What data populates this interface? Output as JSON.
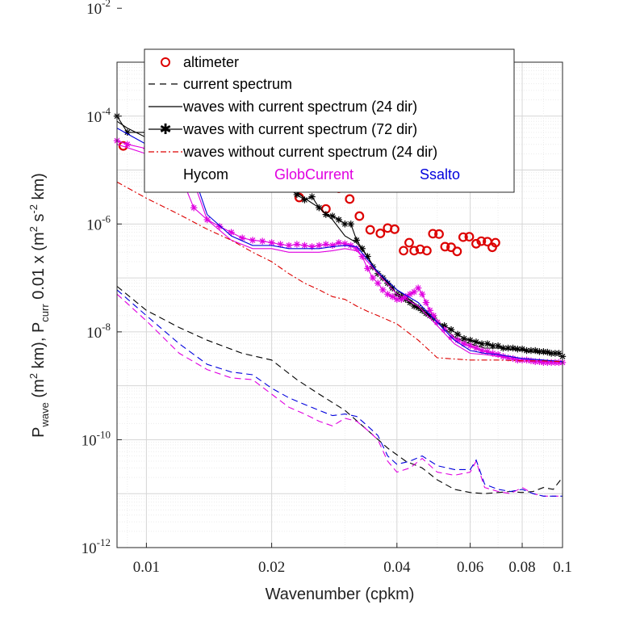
{
  "chart_data": {
    "type": "line",
    "xscale": "log",
    "yscale": "log",
    "xlim": [
      0.0085,
      0.1
    ],
    "ylim": [
      1e-12,
      0.001
    ],
    "xlabel": "Wavenumber (cpkm)",
    "ylabel": {
      "p1": "P",
      "s1": "wave",
      "p2": " (m",
      "sup1": "2",
      "p3": " km), P",
      "s2": "curr",
      "p4": " 0.01 x (m",
      "sup2": "2",
      "p5": " s",
      "sup3": "-2",
      "p6": " km)"
    },
    "xticks": [
      {
        "value": 0.01,
        "label": "0.01"
      },
      {
        "value": 0.02,
        "label": "0.02"
      },
      {
        "value": 0.04,
        "label": "0.04"
      },
      {
        "value": 0.06,
        "label": "0.06"
      },
      {
        "value": 0.08,
        "label": "0.08"
      },
      {
        "value": 0.1,
        "label": "0.1"
      }
    ],
    "yticks": [
      {
        "value": 1e-12,
        "base": "10",
        "exp": "-12"
      },
      {
        "value": 1e-10,
        "base": "10",
        "exp": "-10"
      },
      {
        "value": 1e-08,
        "base": "10",
        "exp": "-8"
      },
      {
        "value": 1e-06,
        "base": "10",
        "exp": "-6"
      },
      {
        "value": 0.0001,
        "base": "10",
        "exp": "-4"
      },
      {
        "value": 0.01,
        "base": "10",
        "exp": "-2"
      }
    ],
    "grid": true,
    "legend": {
      "position": "top",
      "entries": [
        {
          "label": "altimeter",
          "style": "circle",
          "color": "#dd0000"
        },
        {
          "label": "current spectrum",
          "style": "dash",
          "color": "#000000"
        },
        {
          "label": "waves with current spectrum (24 dir)",
          "style": "solid",
          "color": "#000000"
        },
        {
          "label": "waves with current spectrum (72 dir)",
          "style": "solid-star",
          "color": "#000000"
        },
        {
          "label": "waves without current spectrum (24 dir)",
          "style": "dashdot",
          "color": "#dd0000"
        }
      ],
      "colors": [
        {
          "label": "Hycom",
          "color": "#000000"
        },
        {
          "label": "GlobCurrent",
          "color": "#e000e0"
        },
        {
          "label": "Ssalto",
          "color": "#0000dd"
        }
      ]
    },
    "series": [
      {
        "name": "altimeter",
        "style": "circle",
        "color": "#dd0000",
        "x": [
          0.0088,
          0.0105,
          0.012,
          0.0143,
          0.0163,
          0.018,
          0.0195,
          0.0215,
          0.0233,
          0.025,
          0.027,
          0.029,
          0.0308,
          0.0325,
          0.0345,
          0.0365,
          0.038,
          0.0395,
          0.0415,
          0.0428,
          0.044,
          0.0455,
          0.0472,
          0.0488,
          0.0505,
          0.0522,
          0.054,
          0.0558,
          0.0577,
          0.0597,
          0.062,
          0.0638,
          0.066,
          0.0678,
          0.069
        ],
        "y": [
          2.8e-05,
          1.6e-05,
          1.8e-05,
          8.5e-06,
          8.5e-06,
          6.8e-06,
          6.8e-06,
          5.5e-06,
          3.1e-06,
          5.2e-06,
          1.9e-06,
          4.6e-06,
          2.9e-06,
          1.4e-06,
          7.8e-07,
          6.7e-07,
          8.4e-07,
          8e-07,
          3.2e-07,
          4.5e-07,
          3.2e-07,
          3.4e-07,
          3.2e-07,
          6.6e-07,
          6.5e-07,
          3.8e-07,
          3.7e-07,
          3.1e-07,
          5.7e-07,
          5.8e-07,
          4.3e-07,
          4.8e-07,
          4.7e-07,
          3.7e-07,
          4.5e-07
        ]
      },
      {
        "name": "Hycom current spectrum",
        "style": "dash",
        "color": "#000000",
        "x": [
          0.0085,
          0.01,
          0.012,
          0.014,
          0.017,
          0.02,
          0.023,
          0.026,
          0.03,
          0.034,
          0.038,
          0.042,
          0.046,
          0.05,
          0.055,
          0.06,
          0.065,
          0.07,
          0.075,
          0.08,
          0.085,
          0.09,
          0.095,
          0.1
        ],
        "y": [
          7e-08,
          2.5e-08,
          1.2e-08,
          7e-09,
          4e-09,
          3e-09,
          1.3e-09,
          7e-10,
          3.5e-10,
          1.5e-10,
          7e-11,
          4e-11,
          3e-11,
          1.8e-11,
          1.2e-11,
          1.05e-11,
          1e-11,
          1.05e-11,
          1.1e-11,
          1.05e-11,
          1.1e-11,
          1.3e-11,
          1.2e-11,
          2e-11
        ]
      },
      {
        "name": "GlobCurrent current spectrum",
        "style": "dash",
        "color": "#e000e0",
        "x": [
          0.0085,
          0.01,
          0.012,
          0.014,
          0.016,
          0.018,
          0.02,
          0.022,
          0.024,
          0.026,
          0.028,
          0.03,
          0.032,
          0.034,
          0.036,
          0.038,
          0.04,
          0.043,
          0.046,
          0.05,
          0.055,
          0.06,
          0.062,
          0.065,
          0.07,
          0.075,
          0.08,
          0.085,
          0.09,
          0.1
        ],
        "y": [
          5e-08,
          1.6e-08,
          4e-09,
          2e-09,
          1.4e-09,
          1.3e-09,
          7e-10,
          4e-10,
          3e-10,
          2.2e-10,
          1.8e-10,
          2.5e-10,
          2.2e-10,
          1.5e-10,
          1e-10,
          4e-11,
          2.5e-11,
          3e-11,
          4.5e-11,
          2.5e-11,
          2.2e-11,
          2.5e-11,
          4e-11,
          1.3e-11,
          1.1e-11,
          1e-11,
          1.3e-11,
          1e-11,
          9e-12,
          9e-12
        ]
      },
      {
        "name": "Ssalto current spectrum",
        "style": "dash",
        "color": "#0000dd",
        "x": [
          0.0085,
          0.01,
          0.012,
          0.014,
          0.016,
          0.018,
          0.02,
          0.022,
          0.024,
          0.026,
          0.028,
          0.03,
          0.032,
          0.034,
          0.036,
          0.038,
          0.04,
          0.043,
          0.046,
          0.05,
          0.055,
          0.06,
          0.062,
          0.065,
          0.07,
          0.075,
          0.08,
          0.085,
          0.09,
          0.1
        ],
        "y": [
          6e-08,
          2e-08,
          6e-09,
          2.5e-09,
          1.8e-09,
          1.6e-09,
          9e-10,
          6e-10,
          4.5e-10,
          3.5e-10,
          2.8e-10,
          3e-10,
          2.7e-10,
          1.8e-10,
          1.2e-10,
          5e-11,
          3.5e-11,
          4e-11,
          5e-11,
          3.3e-11,
          2.8e-11,
          2.8e-11,
          4.2e-11,
          1.5e-11,
          1.2e-11,
          1.1e-11,
          1.2e-11,
          1e-11,
          9e-12,
          9e-12
        ]
      },
      {
        "name": "Hycom waves with current (24 dir)",
        "style": "solid",
        "color": "#000000",
        "x": [
          0.0085,
          0.009,
          0.01,
          0.012,
          0.014,
          0.016,
          0.018,
          0.02,
          0.022,
          0.024,
          0.026,
          0.028,
          0.03,
          0.032,
          0.034,
          0.036,
          0.04,
          0.045,
          0.05,
          0.055,
          0.06,
          0.065,
          0.07,
          0.08,
          0.09,
          0.1
        ],
        "y": [
          8e-05,
          6e-05,
          4e-05,
          3e-05,
          2.5e-05,
          1.5e-05,
          1e-05,
          6.5e-06,
          5e-06,
          3e-06,
          2e-06,
          1.2e-06,
          6e-07,
          4.5e-07,
          2.5e-07,
          1.2e-07,
          6e-08,
          3e-08,
          1.5e-08,
          8e-09,
          6e-09,
          5e-09,
          5e-09,
          4.5e-09,
          4e-09,
          4e-09
        ]
      },
      {
        "name": "Hycom waves with current (72 dir)",
        "style": "solid-star",
        "color": "#000000",
        "x": [
          0.0085,
          0.009,
          0.01,
          0.011,
          0.012,
          0.013,
          0.014,
          0.015,
          0.016,
          0.017,
          0.018,
          0.019,
          0.02,
          0.021,
          0.022,
          0.023,
          0.024,
          0.025,
          0.026,
          0.027,
          0.028,
          0.029,
          0.03,
          0.031,
          0.032,
          0.033,
          0.034,
          0.035,
          0.036,
          0.037,
          0.038,
          0.039,
          0.04,
          0.041,
          0.042,
          0.043,
          0.044,
          0.045,
          0.046,
          0.047,
          0.048,
          0.049,
          0.05,
          0.052,
          0.054,
          0.056,
          0.058,
          0.06,
          0.062,
          0.064,
          0.066,
          0.068,
          0.07,
          0.072,
          0.074,
          0.076,
          0.078,
          0.08,
          0.082,
          0.084,
          0.086,
          0.088,
          0.09,
          0.092,
          0.094,
          0.096,
          0.098,
          0.1
        ],
        "y": [
          0.0001,
          5e-05,
          5e-05,
          5e-05,
          5e-05,
          3e-05,
          2.5e-05,
          2.5e-05,
          2.5e-05,
          1.5e-05,
          1.1e-05,
          9e-06,
          8e-06,
          6e-06,
          4.5e-06,
          3.5e-06,
          2.8e-06,
          3.2e-06,
          2e-06,
          1.5e-06,
          1.4e-06,
          1.2e-06,
          1e-06,
          1e-06,
          5e-07,
          3.5e-07,
          2.5e-07,
          1.6e-07,
          1.2e-07,
          1e-07,
          8e-08,
          6.5e-08,
          5e-08,
          4.5e-08,
          4e-08,
          3.5e-08,
          3e-08,
          2.8e-08,
          2.5e-08,
          2.2e-08,
          2e-08,
          1.8e-08,
          1.5e-08,
          1.3e-08,
          1.1e-08,
          9e-09,
          7.5e-09,
          7e-09,
          6.5e-09,
          6e-09,
          6e-09,
          5.5e-09,
          5.5e-09,
          5e-09,
          5e-09,
          5e-09,
          4.8e-09,
          4.8e-09,
          4.5e-09,
          4.5e-09,
          4.5e-09,
          4.3e-09,
          4.3e-09,
          4.2e-09,
          4e-09,
          4e-09,
          4e-09,
          3.5e-09
        ]
      },
      {
        "name": "GlobCurrent waves with current (24 dir)",
        "style": "solid",
        "color": "#e000e0",
        "x": [
          0.0085,
          0.01,
          0.012,
          0.013,
          0.014,
          0.016,
          0.018,
          0.02,
          0.022,
          0.024,
          0.026,
          0.028,
          0.03,
          0.032,
          0.034,
          0.036,
          0.04,
          0.045,
          0.05,
          0.055,
          0.06,
          0.065,
          0.07,
          0.08,
          0.09,
          0.1
        ],
        "y": [
          3e-05,
          2e-05,
          1.4e-05,
          6e-06,
          1.2e-06,
          5e-07,
          3.5e-07,
          3.5e-07,
          3e-07,
          3e-07,
          3e-07,
          3.2e-07,
          3.5e-07,
          3.2e-07,
          2e-07,
          1.2e-07,
          5e-08,
          3e-08,
          1.3e-08,
          6e-09,
          4e-09,
          3.8e-09,
          3.5e-09,
          3e-09,
          2.8e-09,
          2.7e-09
        ]
      },
      {
        "name": "GlobCurrent waves with current (72 dir)",
        "style": "solid-star",
        "color": "#e000e0",
        "x": [
          0.0085,
          0.009,
          0.01,
          0.011,
          0.012,
          0.013,
          0.014,
          0.015,
          0.016,
          0.017,
          0.018,
          0.019,
          0.02,
          0.021,
          0.022,
          0.023,
          0.024,
          0.025,
          0.026,
          0.027,
          0.028,
          0.029,
          0.03,
          0.031,
          0.032,
          0.033,
          0.034,
          0.035,
          0.036,
          0.037,
          0.038,
          0.039,
          0.04,
          0.041,
          0.042,
          0.043,
          0.044,
          0.045,
          0.046,
          0.047,
          0.048,
          0.049,
          0.05,
          0.052,
          0.054,
          0.056,
          0.058,
          0.06,
          0.062,
          0.064,
          0.066,
          0.068,
          0.07,
          0.072,
          0.074,
          0.076,
          0.078,
          0.08,
          0.082,
          0.084,
          0.086,
          0.088,
          0.09,
          0.092,
          0.094,
          0.096,
          0.098,
          0.1
        ],
        "y": [
          3.5e-05,
          3e-05,
          2.5e-05,
          2e-05,
          9e-06,
          2e-06,
          1.2e-06,
          9e-07,
          7e-07,
          5.5e-07,
          5e-07,
          4.8e-07,
          4.5e-07,
          4.2e-07,
          4e-07,
          4.2e-07,
          4e-07,
          3.8e-07,
          4e-07,
          4.2e-07,
          4e-07,
          4.5e-07,
          4.3e-07,
          4e-07,
          3.5e-07,
          2.5e-07,
          1.5e-07,
          1e-07,
          8e-08,
          6e-08,
          5e-08,
          4.5e-08,
          4e-08,
          4e-08,
          4.5e-08,
          5e-08,
          5.5e-08,
          6.5e-08,
          5e-08,
          3.5e-08,
          2.5e-08,
          2e-08,
          1.5e-08,
          1.1e-08,
          8e-09,
          7e-09,
          6e-09,
          5.5e-09,
          5e-09,
          4.5e-09,
          4.3e-09,
          4e-09,
          3.8e-09,
          3.5e-09,
          3.3e-09,
          3.2e-09,
          3e-09,
          3e-09,
          3e-09,
          2.9e-09,
          2.8e-09,
          2.8e-09,
          2.7e-09,
          2.7e-09,
          2.7e-09,
          2.7e-09,
          2.7e-09,
          2.7e-09
        ]
      },
      {
        "name": "Ssalto waves with current (24 dir)",
        "style": "solid",
        "color": "#0000dd",
        "x": [
          0.0085,
          0.01,
          0.012,
          0.013,
          0.014,
          0.016,
          0.018,
          0.02,
          0.022,
          0.024,
          0.026,
          0.028,
          0.03,
          0.032,
          0.034,
          0.036,
          0.04,
          0.045,
          0.05,
          0.055,
          0.06,
          0.065,
          0.07,
          0.08,
          0.09,
          0.1
        ],
        "y": [
          6e-05,
          3e-05,
          1.8e-05,
          8e-06,
          1.5e-06,
          6e-07,
          4e-07,
          4e-07,
          3.5e-07,
          3.5e-07,
          3.5e-07,
          3.8e-07,
          4e-07,
          3.8e-07,
          2.2e-07,
          1.3e-07,
          6e-08,
          3.5e-08,
          1.5e-08,
          7e-09,
          4.5e-09,
          4e-09,
          3.8e-09,
          3.2e-09,
          3e-09,
          2.8e-09
        ]
      },
      {
        "name": "waves without current (24 dir)",
        "style": "dashdot",
        "color": "#dd0000",
        "x": [
          0.0085,
          0.01,
          0.012,
          0.014,
          0.016,
          0.018,
          0.02,
          0.022,
          0.024,
          0.026,
          0.028,
          0.03,
          0.032,
          0.034,
          0.036,
          0.04,
          0.045,
          0.05,
          0.06,
          0.07,
          0.08,
          0.09,
          0.1
        ],
        "y": [
          6e-06,
          3e-06,
          1.5e-06,
          8e-07,
          5e-07,
          3e-07,
          2e-07,
          1.2e-07,
          8e-08,
          6e-08,
          4.5e-08,
          4e-08,
          3e-08,
          2.4e-08,
          2e-08,
          1.4e-08,
          7e-09,
          3.3e-09,
          3e-09,
          3e-09,
          2.9e-09,
          2.9e-09,
          2.8e-09
        ]
      }
    ]
  }
}
